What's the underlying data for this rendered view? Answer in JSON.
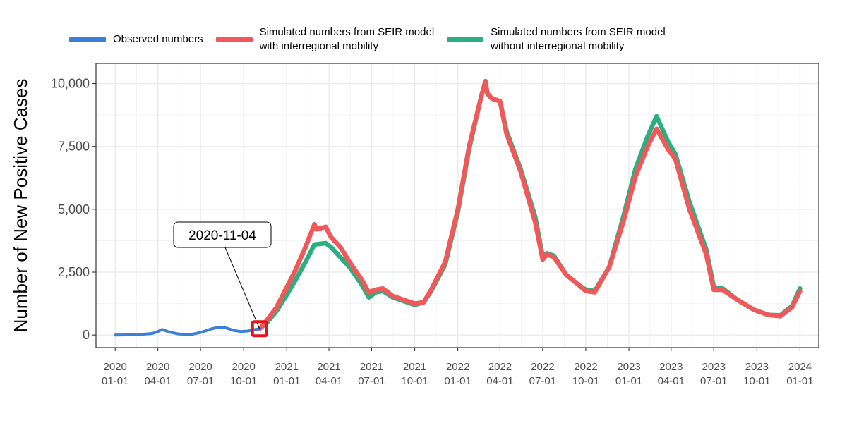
{
  "chart_data": {
    "type": "line",
    "title": "",
    "xlabel": "",
    "ylabel": "Number of New Positive Cases",
    "xlim": [
      "2019-11-21",
      "2024-02-10"
    ],
    "ylim": [
      -500,
      10800
    ],
    "grid": true,
    "legend_position": "top",
    "x_ticks": [
      {
        "date": "2020-01-01",
        "label_year": "2020",
        "label_md": "01-01"
      },
      {
        "date": "2020-04-01",
        "label_year": "2020",
        "label_md": "04-01"
      },
      {
        "date": "2020-07-01",
        "label_year": "2020",
        "label_md": "07-01"
      },
      {
        "date": "2020-10-01",
        "label_year": "2020",
        "label_md": "10-01"
      },
      {
        "date": "2021-01-01",
        "label_year": "2021",
        "label_md": "01-01"
      },
      {
        "date": "2021-04-01",
        "label_year": "2021",
        "label_md": "04-01"
      },
      {
        "date": "2021-07-01",
        "label_year": "2021",
        "label_md": "07-01"
      },
      {
        "date": "2021-10-01",
        "label_year": "2021",
        "label_md": "10-01"
      },
      {
        "date": "2022-01-01",
        "label_year": "2022",
        "label_md": "01-01"
      },
      {
        "date": "2022-04-01",
        "label_year": "2022",
        "label_md": "04-01"
      },
      {
        "date": "2022-07-01",
        "label_year": "2022",
        "label_md": "07-01"
      },
      {
        "date": "2022-10-01",
        "label_year": "2022",
        "label_md": "10-01"
      },
      {
        "date": "2023-01-01",
        "label_year": "2023",
        "label_md": "01-01"
      },
      {
        "date": "2023-04-01",
        "label_year": "2023",
        "label_md": "04-01"
      },
      {
        "date": "2023-07-01",
        "label_year": "2023",
        "label_md": "07-01"
      },
      {
        "date": "2023-10-01",
        "label_year": "2023",
        "label_md": "10-01"
      },
      {
        "date": "2024-01-01",
        "label_year": "2024",
        "label_md": "01-01"
      }
    ],
    "y_ticks": [
      {
        "value": 0,
        "label": "0"
      },
      {
        "value": 2500,
        "label": "2,500"
      },
      {
        "value": 5000,
        "label": "5,000"
      },
      {
        "value": 7500,
        "label": "7,500"
      },
      {
        "value": 10000,
        "label": "10,000"
      }
    ],
    "annotation": {
      "label": "2020-11-04",
      "date": "2020-11-04",
      "value": 250
    },
    "series": [
      {
        "name": "Observed numbers",
        "color": "#3A7FD8",
        "points": [
          [
            "2020-01-01",
            0
          ],
          [
            "2020-02-15",
            10
          ],
          [
            "2020-03-20",
            60
          ],
          [
            "2020-04-01",
            140
          ],
          [
            "2020-04-10",
            220
          ],
          [
            "2020-04-25",
            120
          ],
          [
            "2020-05-15",
            40
          ],
          [
            "2020-06-10",
            20
          ],
          [
            "2020-07-01",
            100
          ],
          [
            "2020-07-25",
            250
          ],
          [
            "2020-08-10",
            320
          ],
          [
            "2020-08-25",
            280
          ],
          [
            "2020-09-10",
            180
          ],
          [
            "2020-09-25",
            140
          ],
          [
            "2020-10-10",
            160
          ],
          [
            "2020-10-25",
            220
          ],
          [
            "2020-11-04",
            250
          ]
        ]
      },
      {
        "name": "Simulated numbers from SEIR model\nwith interregional mobility",
        "color": "#F0585A",
        "points": [
          [
            "2020-11-04",
            250
          ],
          [
            "2020-11-20",
            600
          ],
          [
            "2020-12-10",
            1100
          ],
          [
            "2021-01-01",
            1900
          ],
          [
            "2021-01-20",
            2600
          ],
          [
            "2021-02-10",
            3500
          ],
          [
            "2021-03-01",
            4400
          ],
          [
            "2021-03-05",
            4200
          ],
          [
            "2021-03-25",
            4300
          ],
          [
            "2021-04-05",
            3900
          ],
          [
            "2021-04-25",
            3500
          ],
          [
            "2021-05-15",
            2900
          ],
          [
            "2021-06-10",
            2200
          ],
          [
            "2021-06-25",
            1700
          ],
          [
            "2021-07-10",
            1800
          ],
          [
            "2021-07-25",
            1850
          ],
          [
            "2021-08-15",
            1550
          ],
          [
            "2021-09-15",
            1350
          ],
          [
            "2021-10-01",
            1250
          ],
          [
            "2021-10-20",
            1300
          ],
          [
            "2021-11-05",
            1800
          ],
          [
            "2021-12-05",
            2900
          ],
          [
            "2022-01-01",
            5000
          ],
          [
            "2022-01-25",
            7500
          ],
          [
            "2022-02-20",
            9500
          ],
          [
            "2022-03-01",
            10100
          ],
          [
            "2022-03-05",
            9600
          ],
          [
            "2022-03-15",
            9400
          ],
          [
            "2022-04-01",
            9300
          ],
          [
            "2022-04-15",
            8000
          ],
          [
            "2022-05-15",
            6500
          ],
          [
            "2022-06-15",
            4500
          ],
          [
            "2022-07-01",
            3000
          ],
          [
            "2022-07-10",
            3200
          ],
          [
            "2022-07-25",
            3100
          ],
          [
            "2022-08-20",
            2400
          ],
          [
            "2022-09-15",
            2000
          ],
          [
            "2022-10-01",
            1750
          ],
          [
            "2022-10-20",
            1700
          ],
          [
            "2022-11-20",
            2700
          ],
          [
            "2022-12-20",
            4500
          ],
          [
            "2023-01-15",
            6300
          ],
          [
            "2023-02-10",
            7500
          ],
          [
            "2023-03-01",
            8200
          ],
          [
            "2023-03-25",
            7400
          ],
          [
            "2023-04-10",
            7000
          ],
          [
            "2023-05-10",
            5000
          ],
          [
            "2023-06-15",
            3200
          ],
          [
            "2023-07-01",
            1800
          ],
          [
            "2023-07-20",
            1800
          ],
          [
            "2023-08-20",
            1400
          ],
          [
            "2023-09-25",
            1000
          ],
          [
            "2023-10-25",
            800
          ],
          [
            "2023-11-20",
            750
          ],
          [
            "2023-12-15",
            1100
          ],
          [
            "2024-01-01",
            1750
          ]
        ]
      },
      {
        "name": "Simulated numbers from SEIR model\nwithout interregional mobility",
        "color": "#2BAE80",
        "points": [
          [
            "2020-11-04",
            250
          ],
          [
            "2020-11-20",
            500
          ],
          [
            "2020-12-10",
            950
          ],
          [
            "2021-01-01",
            1600
          ],
          [
            "2021-01-20",
            2200
          ],
          [
            "2021-02-10",
            2900
          ],
          [
            "2021-03-01",
            3600
          ],
          [
            "2021-03-25",
            3650
          ],
          [
            "2021-04-05",
            3500
          ],
          [
            "2021-04-25",
            3100
          ],
          [
            "2021-05-15",
            2700
          ],
          [
            "2021-06-10",
            2000
          ],
          [
            "2021-06-25",
            1500
          ],
          [
            "2021-07-10",
            1700
          ],
          [
            "2021-07-25",
            1750
          ],
          [
            "2021-08-15",
            1500
          ],
          [
            "2021-09-15",
            1300
          ],
          [
            "2021-10-01",
            1200
          ],
          [
            "2021-10-20",
            1300
          ],
          [
            "2021-11-05",
            1750
          ],
          [
            "2021-12-05",
            2800
          ],
          [
            "2022-01-01",
            4900
          ],
          [
            "2022-01-25",
            7400
          ],
          [
            "2022-02-20",
            9500
          ],
          [
            "2022-03-01",
            10050
          ],
          [
            "2022-03-05",
            9600
          ],
          [
            "2022-03-15",
            9400
          ],
          [
            "2022-04-01",
            9300
          ],
          [
            "2022-04-15",
            8100
          ],
          [
            "2022-05-15",
            6600
          ],
          [
            "2022-06-15",
            4700
          ],
          [
            "2022-07-01",
            3100
          ],
          [
            "2022-07-10",
            3250
          ],
          [
            "2022-07-25",
            3150
          ],
          [
            "2022-08-20",
            2400
          ],
          [
            "2022-09-15",
            2000
          ],
          [
            "2022-10-01",
            1800
          ],
          [
            "2022-10-20",
            1750
          ],
          [
            "2022-11-20",
            2700
          ],
          [
            "2022-12-20",
            4700
          ],
          [
            "2023-01-15",
            6600
          ],
          [
            "2023-02-10",
            7900
          ],
          [
            "2023-03-01",
            8700
          ],
          [
            "2023-03-25",
            7700
          ],
          [
            "2023-04-10",
            7200
          ],
          [
            "2023-05-10",
            5300
          ],
          [
            "2023-06-15",
            3400
          ],
          [
            "2023-07-01",
            1900
          ],
          [
            "2023-07-20",
            1850
          ],
          [
            "2023-08-20",
            1400
          ],
          [
            "2023-09-25",
            1000
          ],
          [
            "2023-10-25",
            800
          ],
          [
            "2023-11-20",
            780
          ],
          [
            "2023-12-15",
            1150
          ],
          [
            "2024-01-01",
            1850
          ]
        ]
      }
    ]
  }
}
